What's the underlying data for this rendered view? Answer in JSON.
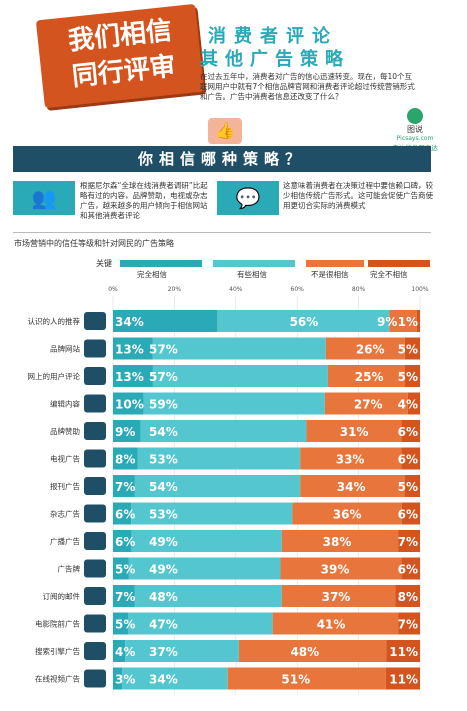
{
  "header": {
    "badge_text": "我们相信\n同行评审",
    "title_line1": "消费者评论",
    "title_line2": "其他广告策略",
    "intro": "在过去五年中，消费者对广告的信心迅速转变。现在，每10个互联网用户中就有7个相信品牌官网和消费者评论超过传统营销形式和广告。广告中消费者信息还改变了什么？",
    "logo_name": "图说",
    "logo_sub": "Picsays.com",
    "logo_tag": "专注信息图表达"
  },
  "section": {
    "title": "你相信哪种策略？",
    "left_text": "根据尼尔森“全球在线消费者调研”比起略有过的内容，品牌赞助，电视或杂志广告，越来越多的用户倾向于相信网站和其他消费者评论",
    "right_text": "这意味着消费者在决策过程中要信赖口碑，较少相信传统广告形式。这可能会促使广告商使用更切合实际的消费模式"
  },
  "colors": {
    "full_trust": "#2aa9b7",
    "some_trust": "#54c6cf",
    "not_much": "#e8763c",
    "not_at_all": "#d4541f",
    "icon_bg": "#1e4f66"
  },
  "chart_data": {
    "type": "bar",
    "title": "市场营销中的信任等级和针对网民的广告策略",
    "legend_label": "关键",
    "legend": [
      "完全相信",
      "有些相信",
      "不是很相信",
      "完全不相信"
    ],
    "xlim": [
      0,
      100
    ],
    "ticks": [
      "0%",
      "20%",
      "40%",
      "60%",
      "80%",
      "100%"
    ],
    "categories": [
      "认识的人的推荐",
      "品牌网站",
      "网上的用户评论",
      "编辑内容",
      "品牌赞助",
      "电视广告",
      "报刊广告",
      "杂志广告",
      "广播广告",
      "广告牌",
      "订阅的邮件",
      "电影院前广告",
      "搜索引擎广告",
      "在线视频广告"
    ],
    "icons": [
      "people-icon",
      "browser-icon",
      "thumbs-up-icon",
      "newspaper-icon",
      "sponsor-icon",
      "tv-icon",
      "newsprint-icon",
      "magazine-icon",
      "radio-icon",
      "billboard-icon",
      "mail-icon",
      "cinema-icon",
      "search-icon",
      "video-icon"
    ],
    "trust_labels": [
      "34%",
      "13%",
      "13%",
      "10%",
      "9%",
      "8%",
      "7%",
      "6%",
      "6%",
      "5%",
      "7%",
      "5%",
      "4%",
      "3%"
    ],
    "some_labels": [
      "56%",
      "57%",
      "57%",
      "59%",
      "54%",
      "53%",
      "54%",
      "53%",
      "49%",
      "49%",
      "48%",
      "47%",
      "37%",
      "34%"
    ],
    "notmuch_labels": [
      "9%",
      "26%",
      "25%",
      "27%",
      "31%",
      "33%",
      "34%",
      "36%",
      "38%",
      "39%",
      "37%",
      "41%",
      "48%",
      "51%"
    ],
    "notatall_labels": [
      "1%",
      "5%",
      "5%",
      "4%",
      "6%",
      "6%",
      "5%",
      "6%",
      "7%",
      "6%",
      "8%",
      "7%",
      "11%",
      "11%"
    ],
    "series": [
      {
        "name": "完全相信",
        "values": [
          34,
          13,
          13,
          10,
          9,
          8,
          7,
          6,
          6,
          5,
          7,
          5,
          4,
          3
        ]
      },
      {
        "name": "有些相信",
        "values": [
          56,
          57,
          57,
          59,
          54,
          53,
          54,
          53,
          49,
          49,
          48,
          47,
          37,
          34
        ]
      },
      {
        "name": "不是很相信",
        "values": [
          9,
          26,
          25,
          27,
          31,
          33,
          34,
          36,
          38,
          39,
          37,
          41,
          48,
          51
        ]
      },
      {
        "name": "完全不相信",
        "values": [
          1,
          5,
          5,
          4,
          6,
          6,
          5,
          6,
          7,
          6,
          8,
          7,
          11,
          11
        ]
      }
    ]
  }
}
